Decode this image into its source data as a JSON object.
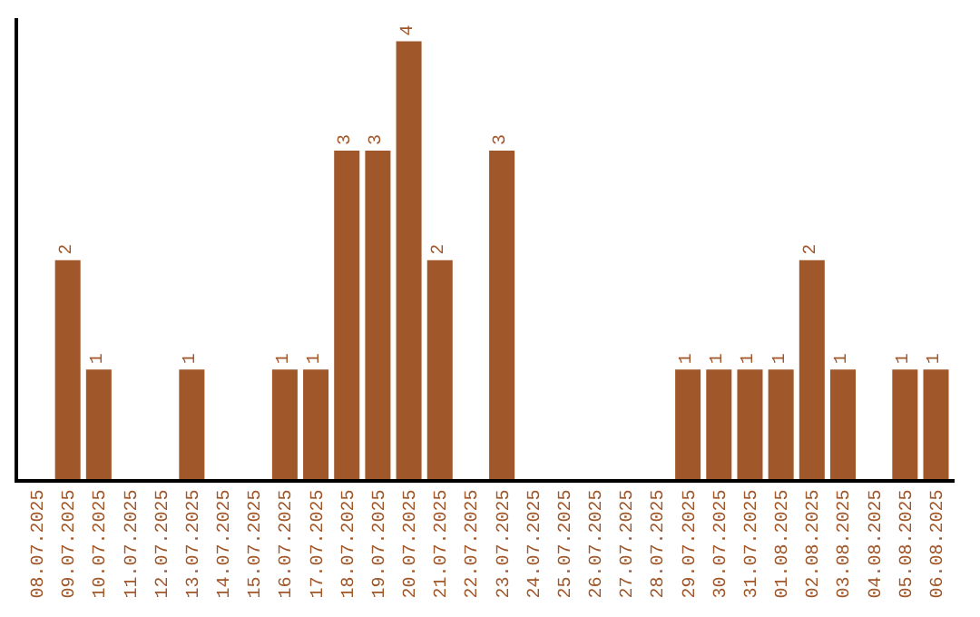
{
  "chart_data": {
    "type": "bar",
    "categories": [
      "08.07.2025",
      "09.07.2025",
      "10.07.2025",
      "11.07.2025",
      "12.07.2025",
      "13.07.2025",
      "14.07.2025",
      "15.07.2025",
      "16.07.2025",
      "17.07.2025",
      "18.07.2025",
      "19.07.2025",
      "20.07.2025",
      "21.07.2025",
      "22.07.2025",
      "23.07.2025",
      "24.07.2025",
      "25.07.2025",
      "26.07.2025",
      "27.07.2025",
      "28.07.2025",
      "29.07.2025",
      "30.07.2025",
      "31.07.2025",
      "01.08.2025",
      "02.08.2025",
      "03.08.2025",
      "04.08.2025",
      "05.08.2025",
      "06.08.2025"
    ],
    "values": [
      0,
      2,
      1,
      0,
      0,
      1,
      0,
      0,
      1,
      1,
      3,
      3,
      4,
      2,
      0,
      3,
      0,
      0,
      0,
      0,
      0,
      1,
      1,
      1,
      1,
      2,
      1,
      0,
      1,
      1
    ],
    "value_labels": [
      null,
      "2",
      "1",
      null,
      null,
      "1",
      null,
      null,
      "1",
      "1",
      "3",
      "3",
      "4",
      "2",
      null,
      "3",
      null,
      null,
      null,
      null,
      null,
      "1",
      "1",
      "1",
      "1",
      "2",
      "1",
      null,
      "1",
      "1"
    ],
    "color": "#a0572a",
    "tick_labels": "x"
  }
}
